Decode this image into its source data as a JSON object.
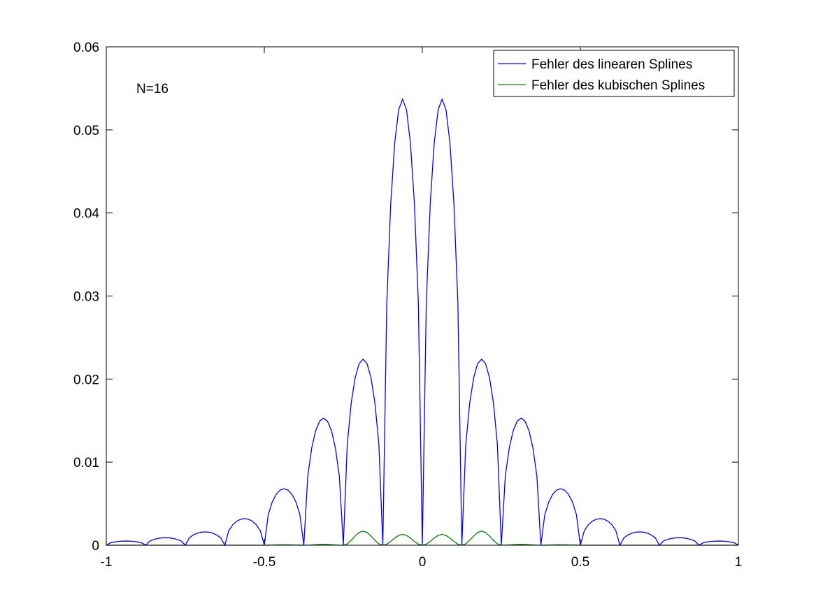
{
  "chart_data": {
    "type": "line",
    "title": "",
    "xlabel": "",
    "ylabel": "",
    "xlim": [
      -1,
      1
    ],
    "ylim": [
      0,
      0.06
    ],
    "x_ticks": [
      -1,
      -0.5,
      0,
      0.5,
      1
    ],
    "x_tick_labels": [
      "-1",
      "-0.5",
      "0",
      "0.5",
      "1"
    ],
    "y_ticks": [
      0,
      0.01,
      0.02,
      0.03,
      0.04,
      0.05,
      0.06
    ],
    "y_tick_labels": [
      "0",
      "0.01",
      "0.02",
      "0.03",
      "0.04",
      "0.05",
      "0.06"
    ],
    "grid": false,
    "legend_position": "top-right",
    "annotation": "N=16",
    "knots": [
      -1,
      -0.875,
      -0.75,
      -0.625,
      -0.5,
      -0.375,
      -0.25,
      -0.125,
      0,
      0.125,
      0.25,
      0.375,
      0.5,
      0.625,
      0.75,
      0.875,
      1
    ],
    "series": [
      {
        "name": "Fehler des linearen Splines",
        "color": "#0000ff",
        "segment_peaks": [
          0.0005,
          0.0009,
          0.0016,
          0.0032,
          0.0068,
          0.0153,
          0.0224,
          0.0537,
          0.0537,
          0.0224,
          0.0153,
          0.0068,
          0.0032,
          0.0016,
          0.0009,
          0.0005
        ]
      },
      {
        "name": "Fehler des kubischen Splines",
        "color": "#008000",
        "segment_peaks": [
          0,
          0,
          0,
          0,
          5e-05,
          0.0001,
          0.0017,
          0.0013,
          0.0013,
          0.0017,
          0.0001,
          5e-05,
          0,
          0,
          0,
          0
        ]
      }
    ]
  }
}
